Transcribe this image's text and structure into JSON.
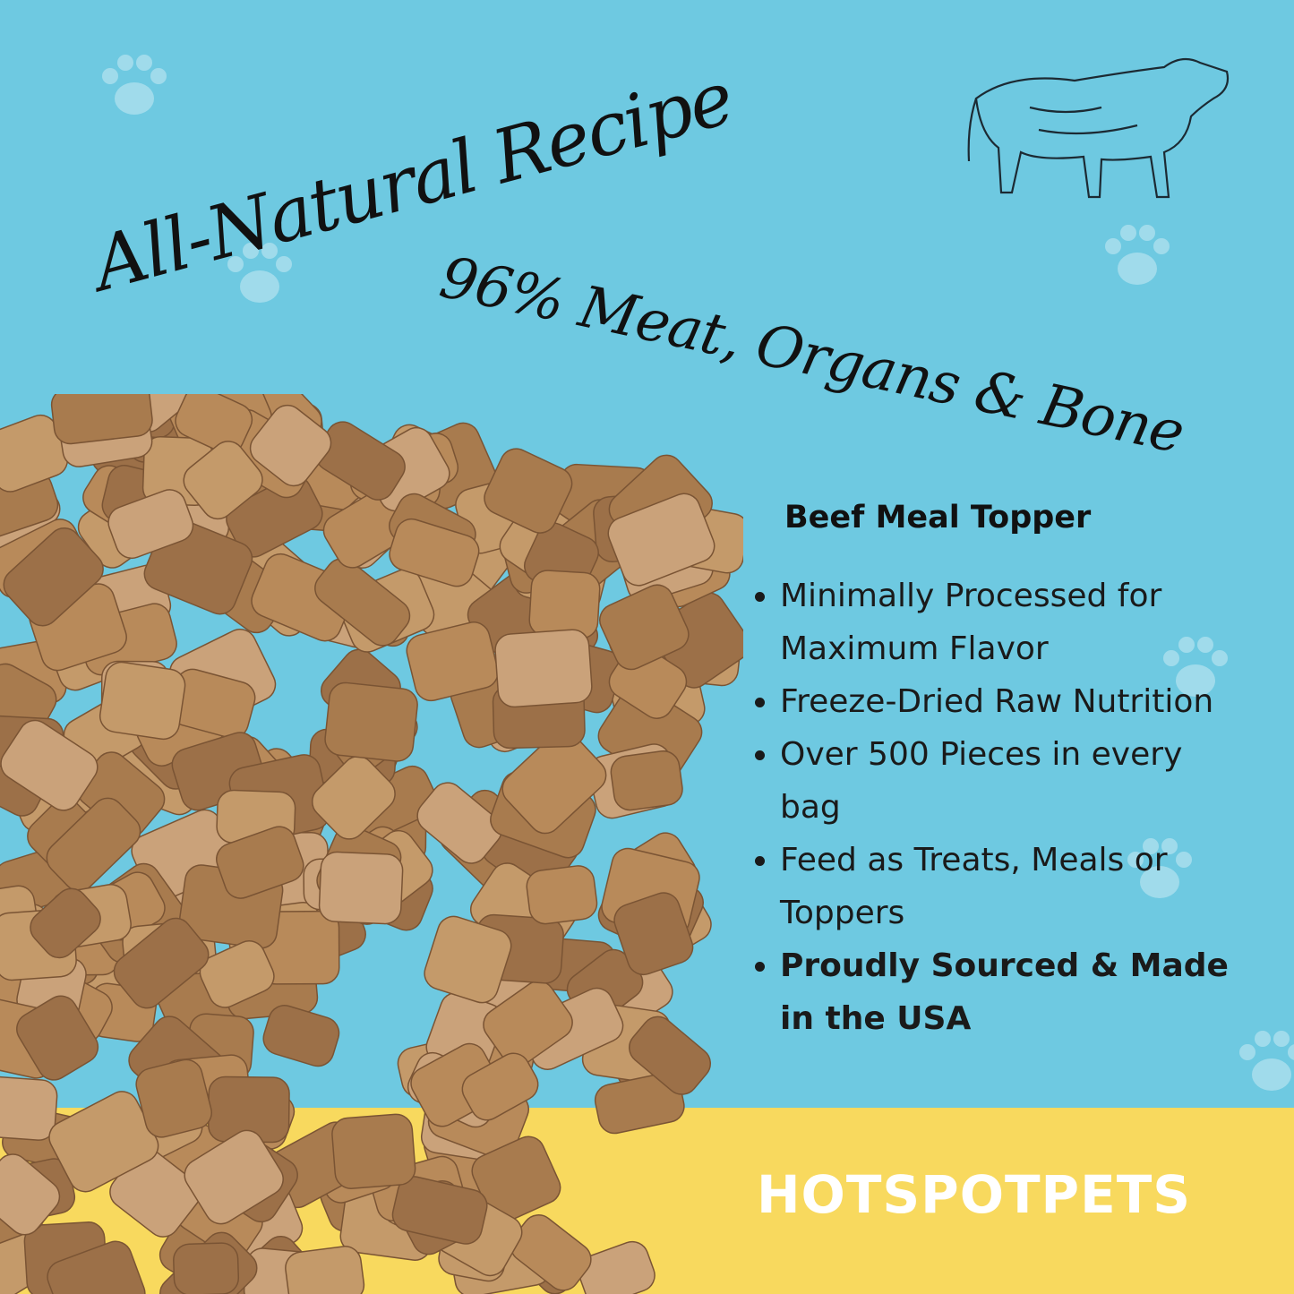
{
  "colors": {
    "background": "#6ec9e1",
    "band": "#f8d95e",
    "kibble": "#b88a5a",
    "text": "#111111"
  },
  "headline": "All-Natural Recipe",
  "subheadline": "96% Meat, Organs & Bone",
  "product": {
    "title": "Beef Meal Topper",
    "features": [
      {
        "text": "Minimally Processed for Maximum Flavor"
      },
      {
        "text": "Freeze-Dried Raw Nutrition"
      },
      {
        "text": "Over 500 Pieces in every bag"
      },
      {
        "text": "Feed as Treats, Meals or Toppers"
      },
      {
        "text": "Proudly Sourced & Made in the USA"
      }
    ]
  },
  "brand": "HOTSPOTPETS",
  "icons": [
    "paw-print-icon",
    "cow-illustration",
    "kibble-photo"
  ]
}
